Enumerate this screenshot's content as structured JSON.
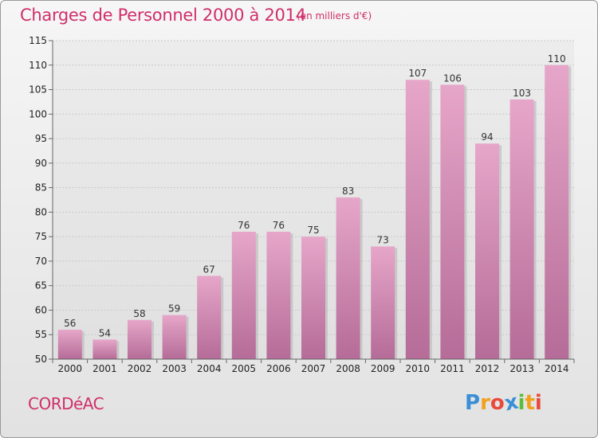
{
  "title": "Charges de Personnel 2000 à 2014",
  "unit_note": "(en milliers d'€)",
  "place": "CORDéAC",
  "logo": {
    "letters": [
      "P",
      "r",
      "o",
      "x",
      "i",
      "t",
      "i"
    ],
    "colors": [
      "#3a8fd6",
      "#f2a11d",
      "#e84b3c",
      "#3a8fd6",
      "#5bbf3a",
      "#f2a11d",
      "#e84b3c"
    ]
  },
  "chart_data": {
    "type": "bar",
    "title": "Charges de Personnel 2000 à 2014",
    "categories": [
      "2000",
      "2001",
      "2002",
      "2003",
      "2004",
      "2005",
      "2006",
      "2007",
      "2008",
      "2009",
      "2010",
      "2011",
      "2012",
      "2013",
      "2014"
    ],
    "values": [
      56,
      54,
      58,
      59,
      67,
      76,
      76,
      75,
      83,
      73,
      107,
      106,
      94,
      103,
      110
    ],
    "ylim": [
      50,
      115
    ],
    "yticks": [
      50,
      55,
      60,
      65,
      70,
      75,
      80,
      85,
      90,
      95,
      100,
      105,
      110,
      115
    ],
    "grid": true,
    "bar_color": "#d880ad"
  }
}
